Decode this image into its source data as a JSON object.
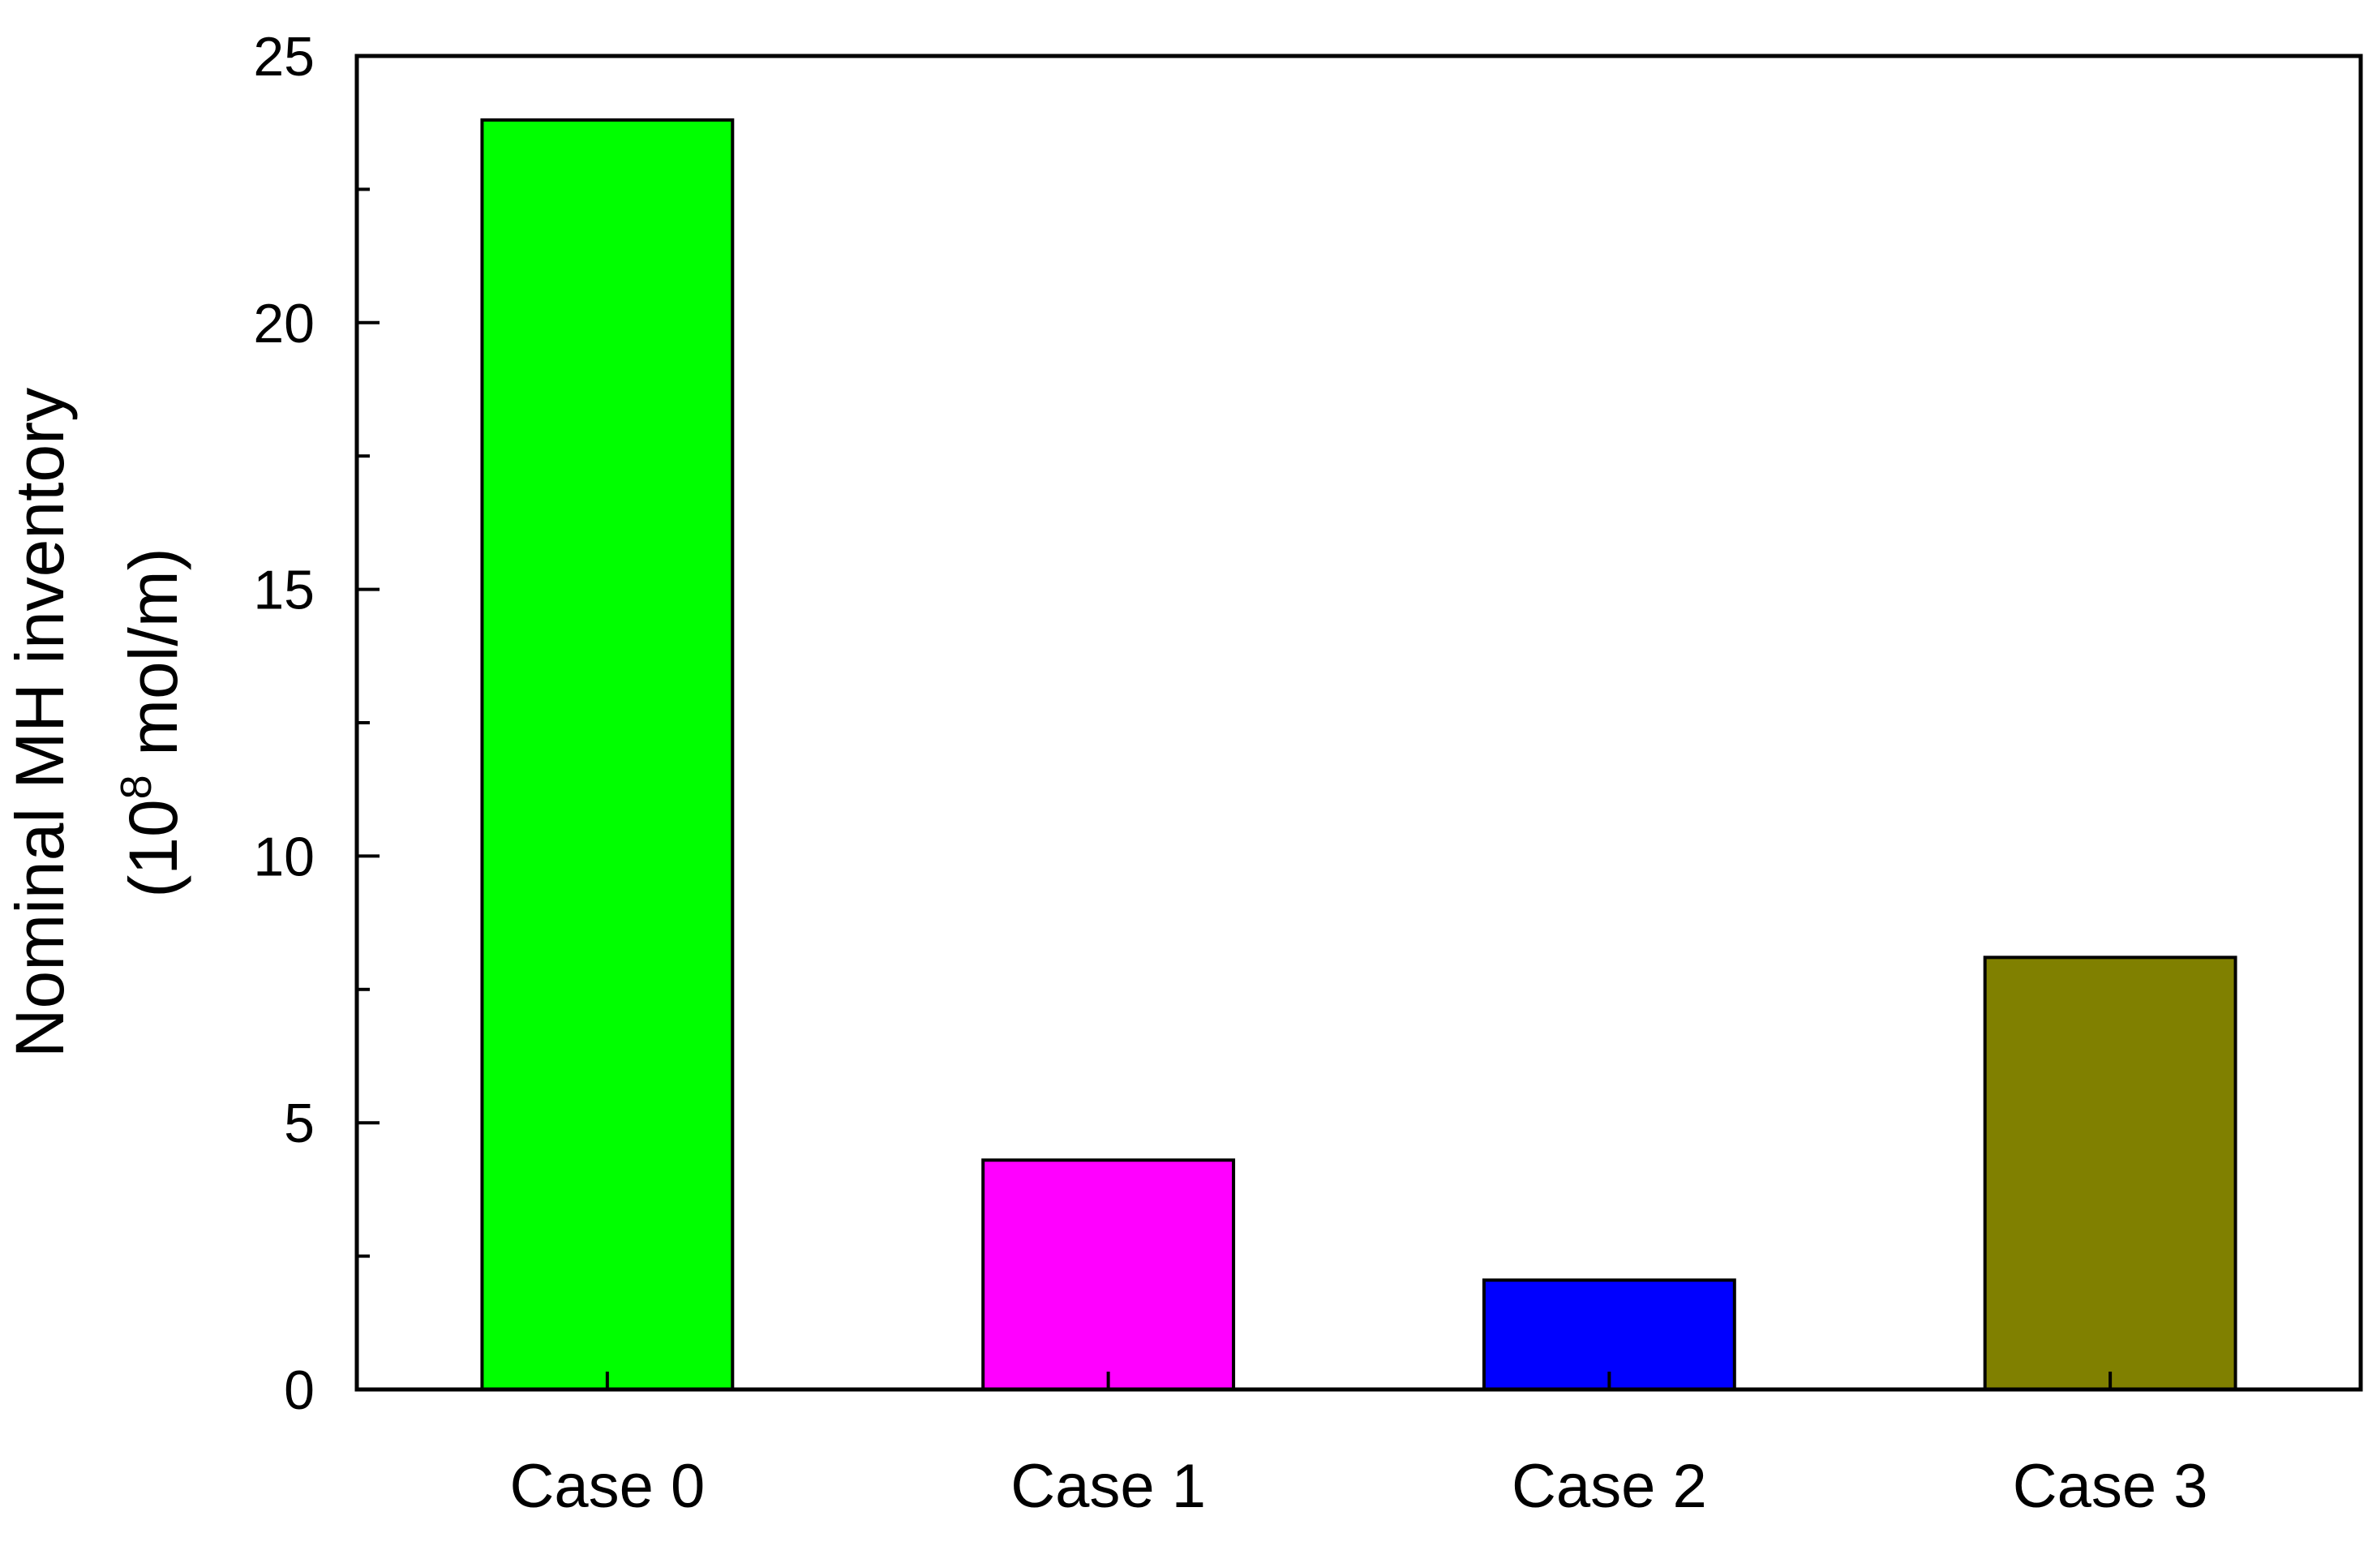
{
  "chart_data": {
    "type": "bar",
    "categories": [
      "Case 0",
      "Case 1",
      "Case 2",
      "Case 3"
    ],
    "values": [
      23.8,
      4.3,
      2.05,
      8.1
    ],
    "colors": [
      "#00ff00",
      "#ff00ff",
      "#0000ff",
      "#808000"
    ],
    "ylim": [
      0,
      25
    ],
    "ymajor": [
      0,
      5,
      10,
      15,
      20,
      25
    ],
    "yminor_step": 2.5,
    "ylabel_line1": "Nominal MH inventory",
    "ylabel_line2_prefix": "(10",
    "ylabel_line2_sup": "8",
    "ylabel_line2_suffix": " mol/m)",
    "xlabel": "",
    "title": "",
    "grid": false,
    "legend": "none"
  }
}
